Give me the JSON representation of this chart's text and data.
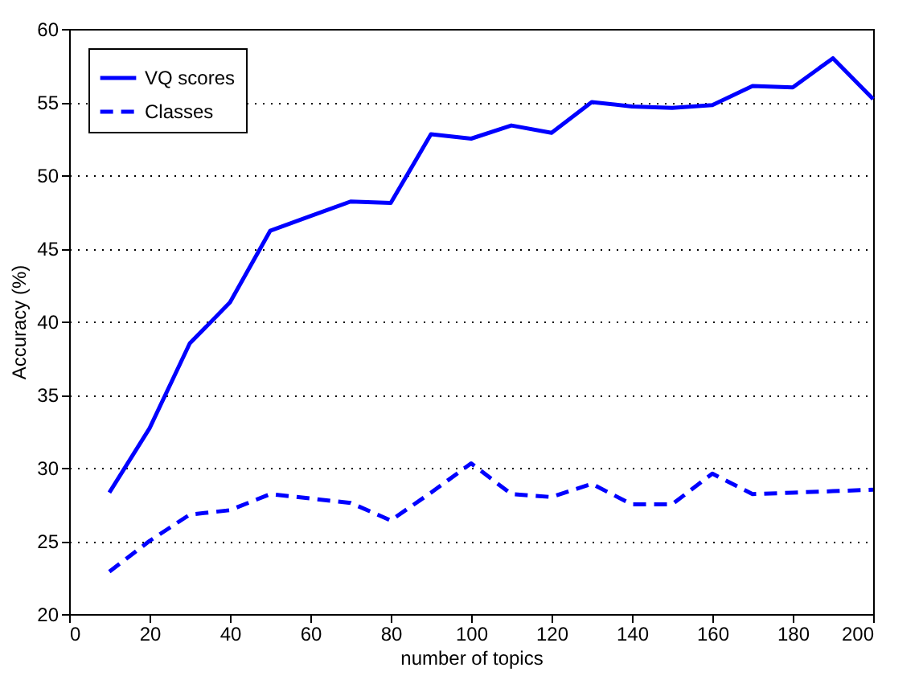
{
  "chart_data": {
    "type": "line",
    "xlabel": "number of topics",
    "ylabel": "Accuracy (%)",
    "x": [
      10,
      20,
      30,
      40,
      50,
      60,
      70,
      80,
      90,
      100,
      110,
      120,
      130,
      140,
      150,
      160,
      170,
      180,
      190,
      200
    ],
    "series": [
      {
        "name": "VQ scores",
        "color": "#0000ff",
        "line_style": "solid",
        "values": [
          28.3,
          32.7,
          38.5,
          41.3,
          46.2,
          47.2,
          48.2,
          48.1,
          52.8,
          52.5,
          53.4,
          52.9,
          55.0,
          54.7,
          54.6,
          54.8,
          56.1,
          56.0,
          58.0,
          55.2
        ]
      },
      {
        "name": "Classes",
        "color": "#0000ff",
        "line_style": "dashed",
        "values": [
          22.9,
          25.0,
          26.8,
          27.1,
          28.2,
          27.9,
          27.6,
          26.4,
          28.3,
          30.3,
          28.2,
          28.0,
          28.9,
          27.5,
          27.5,
          29.6,
          28.2,
          28.3,
          28.4,
          28.5
        ]
      }
    ],
    "xlim": [
      0,
      200
    ],
    "xticks": [
      0,
      20,
      40,
      60,
      80,
      100,
      120,
      140,
      160,
      180,
      200
    ],
    "ylim": [
      20,
      60
    ],
    "yticks": [
      20,
      25,
      30,
      35,
      40,
      45,
      50,
      55,
      60
    ],
    "grid": "y",
    "legend": "top left",
    "marker": "none"
  }
}
